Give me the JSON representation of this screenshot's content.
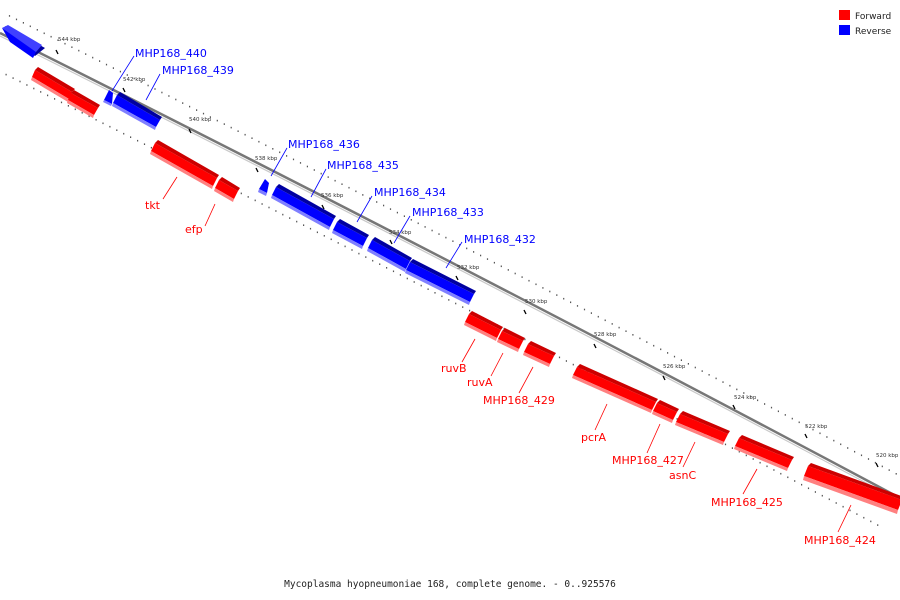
{
  "colors": {
    "forward": "#ff0000",
    "forward_dark": "#b30000",
    "forward_light": "#ff8080",
    "reverse": "#0000ff",
    "reverse_dark": "#0000a0",
    "reverse_light": "#7f7fff",
    "backbone": "#888888"
  },
  "legend": {
    "forward": "Forward",
    "reverse": "Reverse"
  },
  "caption": "Mycoplasma hyopneumoniae 168, complete genome. - 0..925576",
  "ticks": [
    "544 kbp",
    "542 kbp",
    "540 kbp",
    "538 kbp",
    "536 kbp",
    "534 kbp",
    "532 kbp",
    "530 kbp",
    "528 kbp",
    "526 kbp",
    "524 kbp",
    "522 kbp",
    "520 kbp"
  ],
  "genes": [
    {
      "name": "",
      "strand": "reverse"
    },
    {
      "name": "",
      "strand": "forward"
    },
    {
      "name": "",
      "strand": "forward"
    },
    {
      "name": "MHP168_440",
      "strand": "reverse"
    },
    {
      "name": "MHP168_439",
      "strand": "reverse"
    },
    {
      "name": "tkt",
      "strand": "forward"
    },
    {
      "name": "efp",
      "strand": "forward"
    },
    {
      "name": "MHP168_436",
      "strand": "reverse"
    },
    {
      "name": "MHP168_435",
      "strand": "reverse"
    },
    {
      "name": "MHP168_434",
      "strand": "reverse"
    },
    {
      "name": "MHP168_433",
      "strand": "reverse"
    },
    {
      "name": "MHP168_432",
      "strand": "reverse"
    },
    {
      "name": "ruvB",
      "strand": "forward"
    },
    {
      "name": "ruvA",
      "strand": "forward"
    },
    {
      "name": "MHP168_429",
      "strand": "forward"
    },
    {
      "name": "pcrA",
      "strand": "forward"
    },
    {
      "name": "MHP168_427",
      "strand": "forward"
    },
    {
      "name": "asnC",
      "strand": "forward"
    },
    {
      "name": "MHP168_425",
      "strand": "forward"
    },
    {
      "name": "MHP168_424",
      "strand": "forward"
    }
  ]
}
